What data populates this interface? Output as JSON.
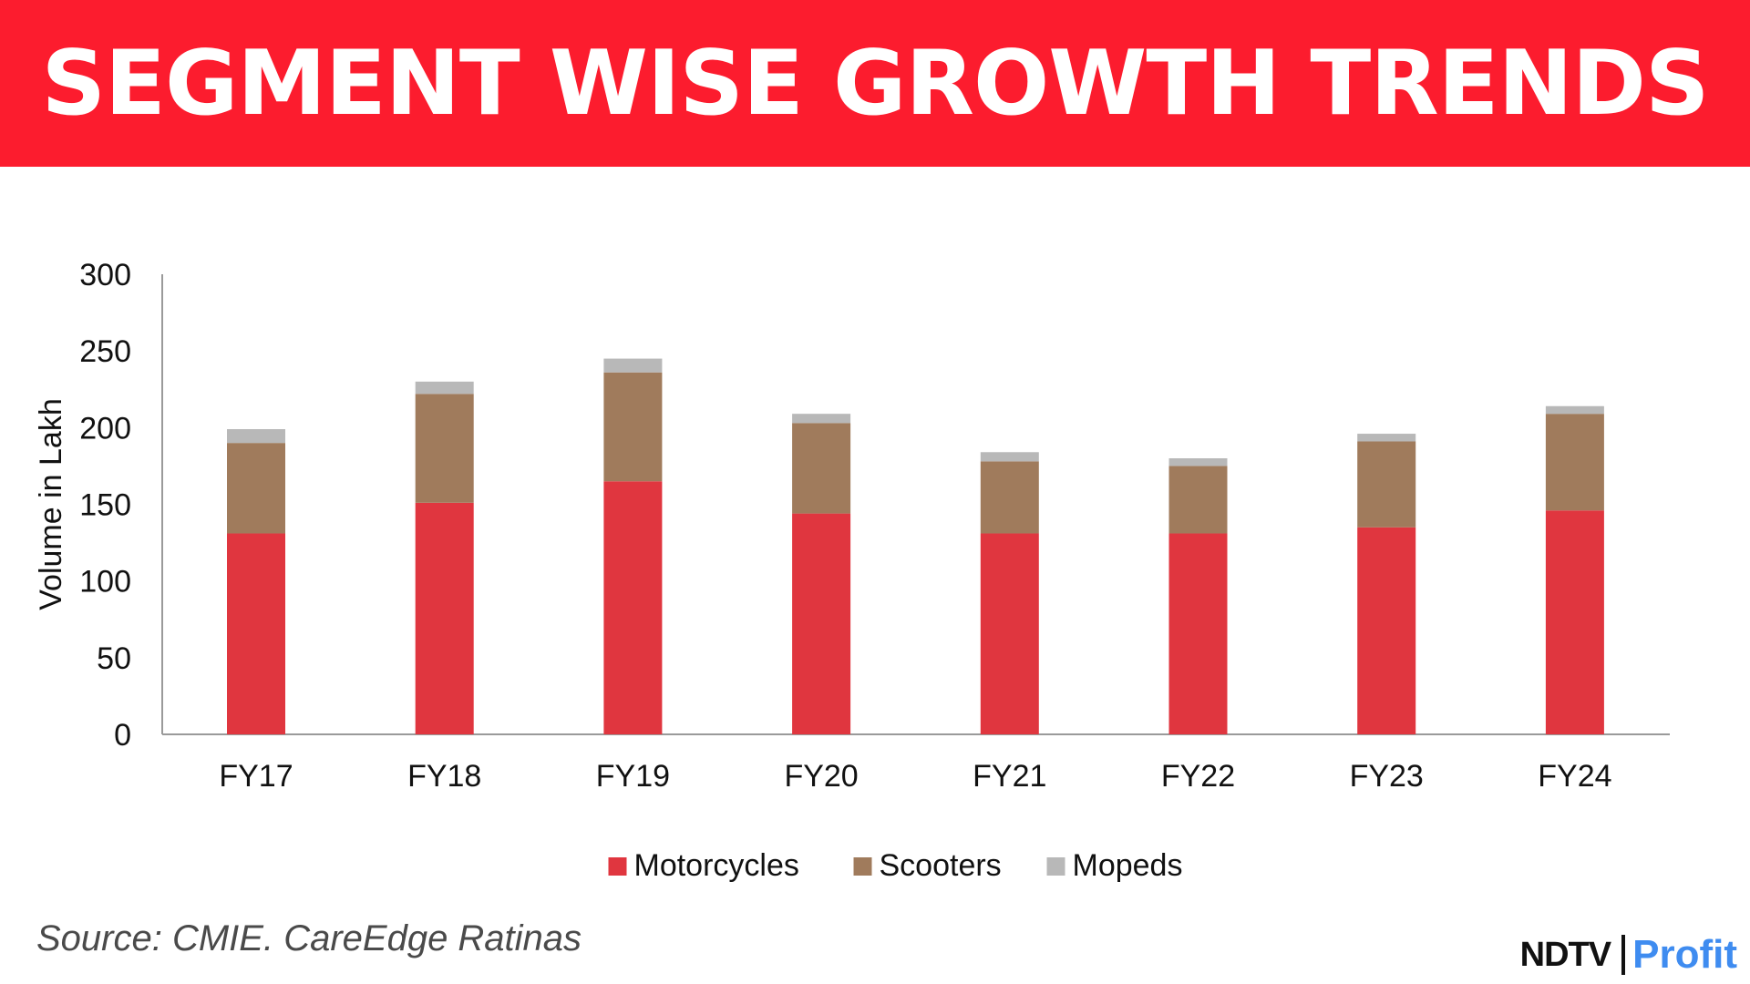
{
  "header": {
    "title": "SEGMENT WISE GROWTH TRENDS"
  },
  "colors": {
    "banner": "#fc1c2e",
    "text": "#111111",
    "axis": "#9a9a9a"
  },
  "chart_data": {
    "type": "bar",
    "stacked": true,
    "title": "",
    "xlabel": "",
    "ylabel": "Volume in Lakh",
    "ylim": [
      0,
      300
    ],
    "yticks": [
      0,
      50,
      100,
      150,
      200,
      250,
      300
    ],
    "categories": [
      "FY17",
      "FY18",
      "FY19",
      "FY20",
      "FY21",
      "FY22",
      "FY23",
      "FY24"
    ],
    "series": [
      {
        "name": "Motorcycles",
        "color": "#e0363f",
        "values": [
          131,
          151,
          165,
          144,
          131,
          131,
          135,
          146
        ]
      },
      {
        "name": "Scooters",
        "color": "#a07b5c",
        "values": [
          59,
          71,
          71,
          59,
          47,
          44,
          56,
          63
        ]
      },
      {
        "name": "Mopeds",
        "color": "#b8b8b8",
        "values": [
          9,
          8,
          9,
          6,
          6,
          5,
          5,
          5
        ]
      }
    ],
    "legend_position": "bottom",
    "grid": false
  },
  "footer": {
    "source": "Source: CMIE. CareEdge Ratinas",
    "logo_left": "NDTV",
    "logo_right": "Profit"
  }
}
